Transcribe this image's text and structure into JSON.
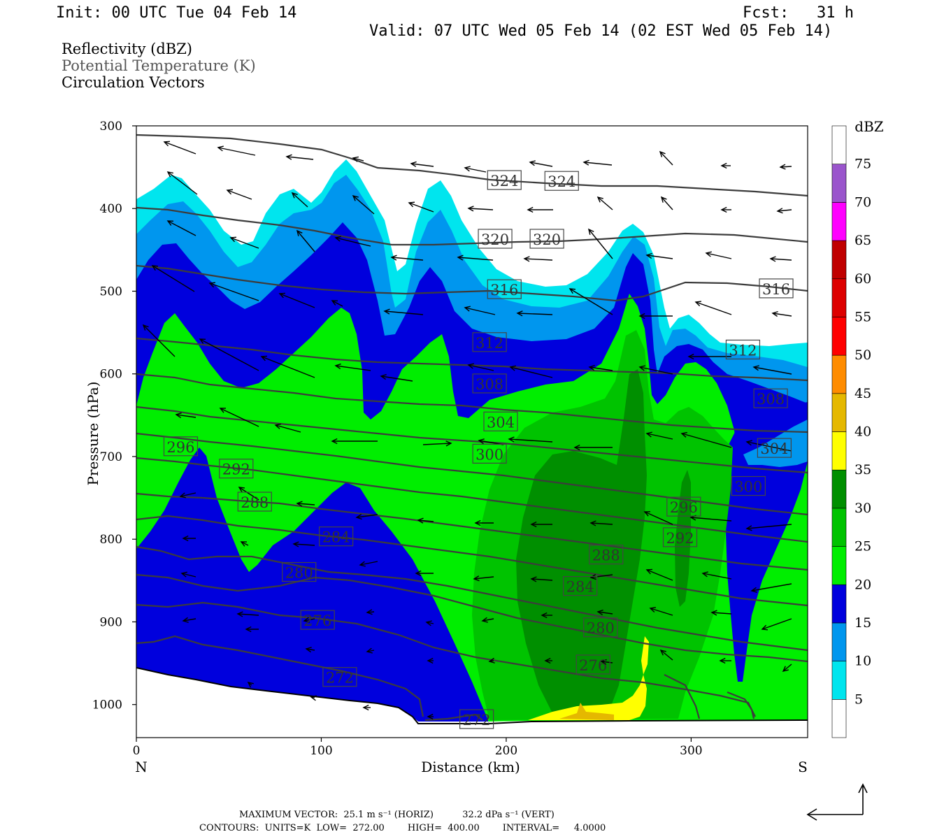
{
  "header": {
    "init": "Init: 00 UTC Tue 04 Feb 14",
    "fcst": "Fcst:   31 h",
    "valid": "Valid: 07 UTC Wed 05 Feb 14 (02 EST Wed 05 Feb 14)"
  },
  "fields": {
    "field1": "Reflectivity (dBZ)",
    "field2": "Potential Temperature (K)",
    "field3": "Circulation Vectors"
  },
  "footer": {
    "max_vector": "MAXIMUM VECTOR:  25.1 m s⁻¹ (HORIZ)          32.2 dPa s⁻¹ (VERT)",
    "contours": "CONTOURS:  UNITS=K  LOW=  272.00        HIGH=  400.00        INTERVAL=     4.0000"
  },
  "colors": {
    "dbz_5": "#00e5ee",
    "dbz_10": "#0096ee",
    "dbz_15": "#0000dd",
    "dbz_20": "#00ee00",
    "dbz_25": "#00c300",
    "dbz_30": "#008f00",
    "dbz_35": "#ffff00",
    "dbz_40": "#e5b800",
    "dbz_45": "#ff8c00",
    "dbz_50": "#ff0000",
    "dbz_55": "#dd0000",
    "dbz_60": "#c00000",
    "dbz_65": "#ff00ff",
    "dbz_70": "#9a55cc",
    "theta_line": "#3c3c3c"
  },
  "chart_data": {
    "type": "cross-section",
    "xlabel": "Distance (km)",
    "ylabel": "Pressure (hPa)",
    "xlim": [
      0,
      363
    ],
    "ylim": [
      1040,
      300
    ],
    "x_ticks": [
      "0",
      "100",
      "200",
      "300"
    ],
    "y_ticks": [
      "300",
      "400",
      "500",
      "600",
      "700",
      "800",
      "900",
      "1000"
    ],
    "x_end_labels": {
      "left": "N",
      "right": "S"
    },
    "colorbar": {
      "unit": "dBZ",
      "levels": [
        "5",
        "10",
        "15",
        "20",
        "25",
        "30",
        "35",
        "40",
        "45",
        "50",
        "55",
        "60",
        "65",
        "70",
        "75"
      ]
    },
    "theta_contour_labels": [
      {
        "label": "324",
        "x": 199,
        "p": 366
      },
      {
        "label": "324",
        "x": 230,
        "p": 367
      },
      {
        "label": "320",
        "x": 194,
        "p": 437
      },
      {
        "label": "320",
        "x": 222,
        "p": 437
      },
      {
        "label": "316",
        "x": 199,
        "p": 498
      },
      {
        "label": "316",
        "x": 346,
        "p": 497
      },
      {
        "label": "312",
        "x": 191,
        "p": 562
      },
      {
        "label": "312",
        "x": 328,
        "p": 571
      },
      {
        "label": "308",
        "x": 191,
        "p": 612
      },
      {
        "label": "308",
        "x": 343,
        "p": 630
      },
      {
        "label": "304",
        "x": 197,
        "p": 658
      },
      {
        "label": "304",
        "x": 345,
        "p": 690
      },
      {
        "label": "300",
        "x": 191,
        "p": 697
      },
      {
        "label": "300",
        "x": 331,
        "p": 736
      },
      {
        "label": "296",
        "x": 24,
        "p": 688
      },
      {
        "label": "296",
        "x": 296,
        "p": 761
      },
      {
        "label": "292",
        "x": 54,
        "p": 715
      },
      {
        "label": "292",
        "x": 294,
        "p": 798
      },
      {
        "label": "288",
        "x": 64,
        "p": 755
      },
      {
        "label": "288",
        "x": 254,
        "p": 819
      },
      {
        "label": "284",
        "x": 108,
        "p": 797
      },
      {
        "label": "284",
        "x": 240,
        "p": 857
      },
      {
        "label": "280",
        "x": 88,
        "p": 840
      },
      {
        "label": "280",
        "x": 251,
        "p": 907
      },
      {
        "label": "276",
        "x": 98,
        "p": 898
      },
      {
        "label": "276",
        "x": 247,
        "p": 952
      },
      {
        "label": "272",
        "x": 110,
        "p": 967
      },
      {
        "label": "272",
        "x": 184,
        "p": 1018
      }
    ]
  }
}
